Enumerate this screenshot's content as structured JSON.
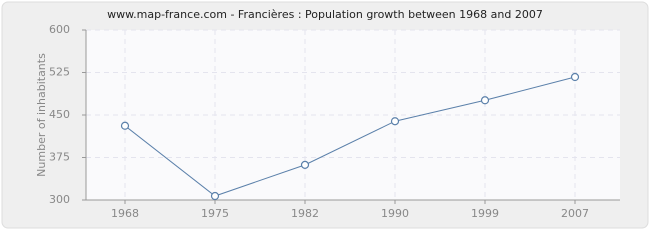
{
  "chart_data": {
    "type": "line",
    "title": "www.map-france.com - Francières : Population growth between 1968 and 2007",
    "y_label": "Number of inhabitants",
    "categories": [
      "1968",
      "1975",
      "1982",
      "1990",
      "1999",
      "2007"
    ],
    "series": [
      {
        "name": "Population",
        "color": "#5b80aa",
        "values": [
          431,
          307,
          362,
          439,
          476,
          517
        ]
      }
    ],
    "ylim": [
      300,
      600
    ],
    "yticks": [
      300,
      375,
      450,
      525,
      600
    ],
    "grid": true
  }
}
